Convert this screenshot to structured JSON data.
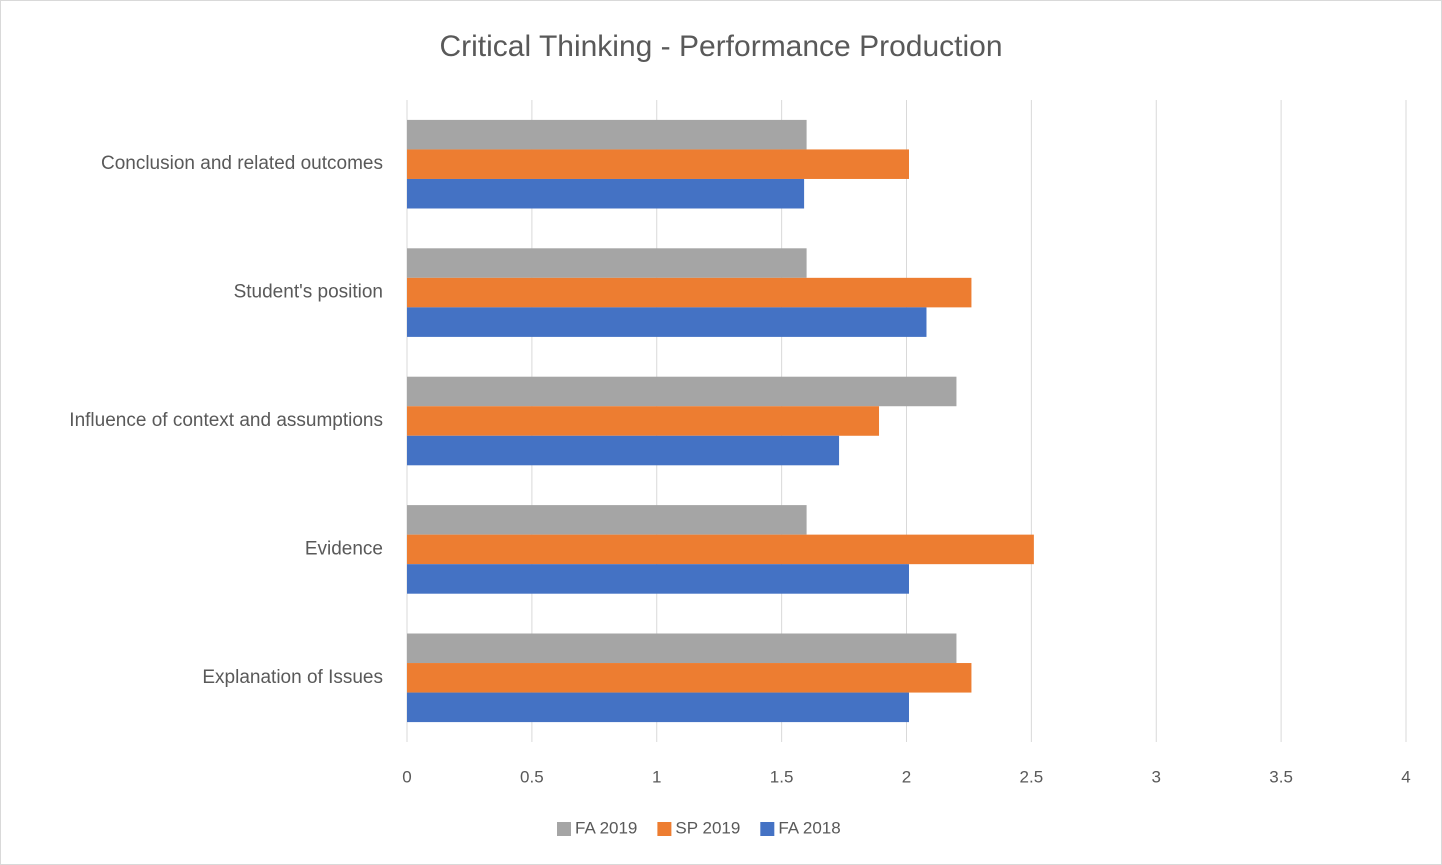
{
  "chart_data": {
    "type": "bar",
    "orientation": "horizontal",
    "title": "Critical Thinking - Performance Production",
    "categories": [
      "Conclusion and related outcomes",
      "Student's position",
      "Influence of context and assumptions",
      "Evidence",
      "Explanation of Issues"
    ],
    "series": [
      {
        "name": "FA 2019",
        "color": "#a5a5a5",
        "values": [
          1.6,
          1.6,
          2.2,
          1.6,
          2.2
        ]
      },
      {
        "name": "SP 2019",
        "color": "#ed7d31",
        "values": [
          2.01,
          2.26,
          1.89,
          2.51,
          2.26
        ]
      },
      {
        "name": "FA 2018",
        "color": "#4472c4",
        "values": [
          1.59,
          2.08,
          1.73,
          2.01,
          2.01
        ]
      }
    ],
    "xlim": [
      0,
      4
    ],
    "xticks": [
      0,
      0.5,
      1,
      1.5,
      2,
      2.5,
      3,
      3.5,
      4
    ],
    "grid": true,
    "legend": "bottom"
  }
}
